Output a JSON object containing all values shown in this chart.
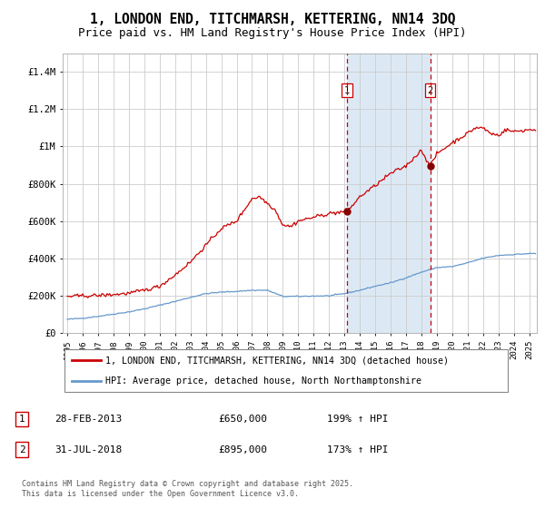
{
  "title": "1, LONDON END, TITCHMARSH, KETTERING, NN14 3DQ",
  "subtitle": "Price paid vs. HM Land Registry's House Price Index (HPI)",
  "title_fontsize": 10.5,
  "subtitle_fontsize": 9,
  "background_color": "#ffffff",
  "plot_bg_color": "#ffffff",
  "grid_color": "#cccccc",
  "highlight_color": "#dce9f5",
  "sale1_date_num": 2013.17,
  "sale1_price": 650000,
  "sale2_date_num": 2018.58,
  "sale2_price": 895000,
  "red_line_color": "#cc0000",
  "blue_line_color": "#6699cc",
  "marker_color": "#880000",
  "dashed_color": "#cc0000",
  "legend_red_label": "1, LONDON END, TITCHMARSH, KETTERING, NN14 3DQ (detached house)",
  "legend_blue_label": "HPI: Average price, detached house, North Northamptonshire",
  "footer": "Contains HM Land Registry data © Crown copyright and database right 2025.\nThis data is licensed under the Open Government Licence v3.0.",
  "ylim": [
    0,
    1500000
  ],
  "xlim_start": 1994.7,
  "xlim_end": 2025.5,
  "yticks": [
    0,
    200000,
    400000,
    600000,
    800000,
    1000000,
    1200000,
    1400000
  ],
  "ytick_labels": [
    "£0",
    "£200K",
    "£400K",
    "£600K",
    "£800K",
    "£1M",
    "£1.2M",
    "£1.4M"
  ],
  "xtick_years": [
    1995,
    1996,
    1997,
    1998,
    1999,
    2000,
    2001,
    2002,
    2003,
    2004,
    2005,
    2006,
    2007,
    2008,
    2009,
    2010,
    2011,
    2012,
    2013,
    2014,
    2015,
    2016,
    2017,
    2018,
    2019,
    2020,
    2021,
    2022,
    2023,
    2024,
    2025
  ],
  "hpi_x": [
    1995,
    1996,
    1997,
    1998,
    1999,
    2000,
    2001,
    2002,
    2003,
    2004,
    2005,
    2006,
    2007,
    2008,
    2009,
    2010,
    2011,
    2012,
    2013,
    2014,
    2015,
    2016,
    2017,
    2018,
    2019,
    2020,
    2021,
    2022,
    2023,
    2024,
    2025
  ],
  "hpi_y": [
    72000,
    78000,
    88000,
    100000,
    112000,
    128000,
    148000,
    168000,
    190000,
    210000,
    218000,
    222000,
    228000,
    228000,
    195000,
    195000,
    197000,
    198000,
    210000,
    228000,
    250000,
    268000,
    295000,
    325000,
    350000,
    355000,
    375000,
    400000,
    415000,
    420000,
    425000
  ],
  "prop_x": [
    1995,
    1996,
    1997,
    1998,
    1999,
    2000,
    2001,
    2002,
    2003,
    2004,
    2005,
    2006,
    2007,
    2007.5,
    2008,
    2008.5,
    2009,
    2009.5,
    2010,
    2011,
    2012,
    2012.5,
    2013,
    2013.5,
    2014,
    2015,
    2016,
    2017,
    2018,
    2018.58,
    2019,
    2020,
    2021,
    2021.5,
    2022,
    2022.5,
    2023,
    2023.5,
    2024,
    2025
  ],
  "prop_y": [
    195000,
    198000,
    200000,
    205000,
    212000,
    228000,
    250000,
    310000,
    380000,
    470000,
    560000,
    600000,
    720000,
    730000,
    695000,
    660000,
    580000,
    570000,
    600000,
    620000,
    640000,
    645000,
    650000,
    680000,
    730000,
    790000,
    855000,
    895000,
    980000,
    895000,
    960000,
    1020000,
    1070000,
    1100000,
    1100000,
    1070000,
    1060000,
    1090000,
    1080000,
    1090000
  ]
}
